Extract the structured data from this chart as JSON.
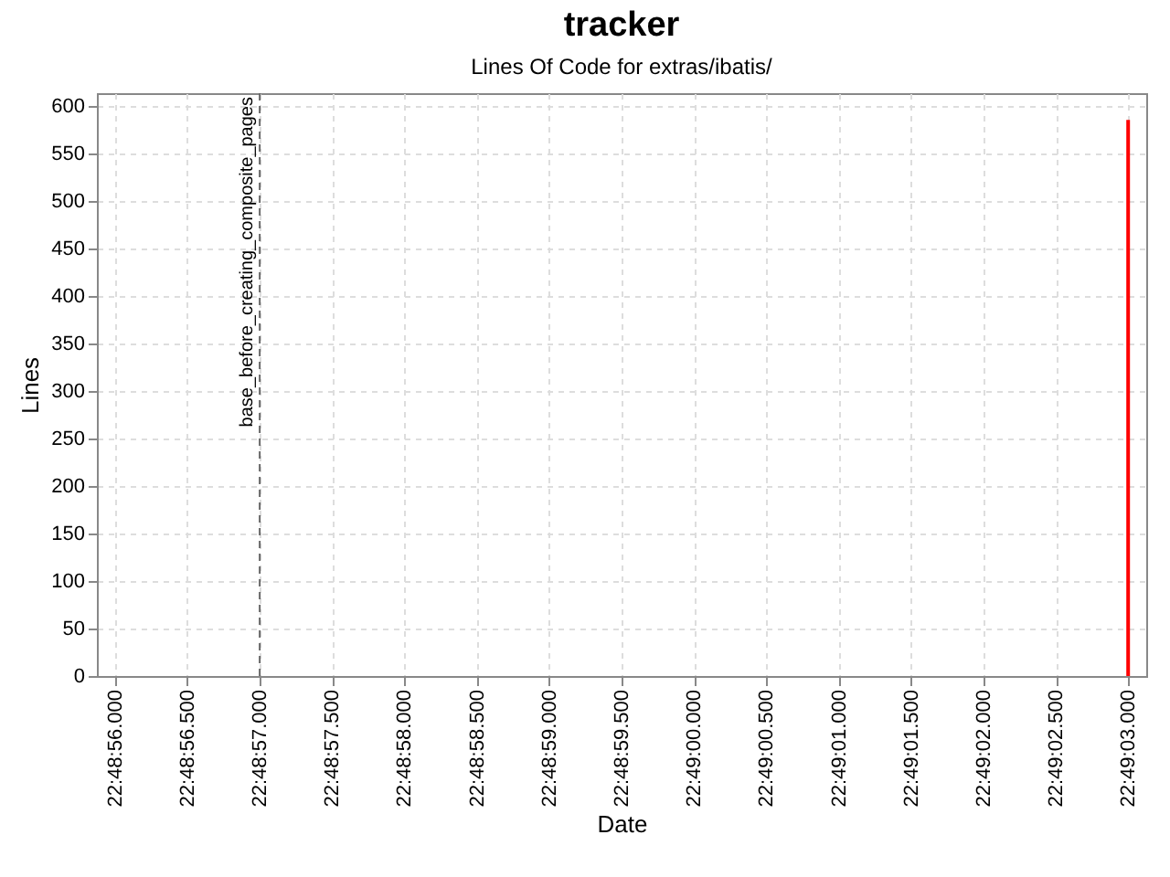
{
  "chart_data": {
    "type": "bar",
    "title": "tracker",
    "subtitle": "Lines Of Code for extras/ibatis/",
    "xlabel": "Date",
    "ylabel": "Lines",
    "categories": [
      "22:48:56.000",
      "22:48:56.500",
      "22:48:57.000",
      "22:48:57.500",
      "22:48:58.000",
      "22:48:58.500",
      "22:48:59.000",
      "22:48:59.500",
      "22:49:00.000",
      "22:49:00.500",
      "22:49:01.000",
      "22:49:01.500",
      "22:49:02.000",
      "22:49:02.500",
      "22:49:03.000"
    ],
    "series": [
      {
        "color": "#ff0000",
        "values": [
          null,
          null,
          null,
          null,
          null,
          null,
          null,
          null,
          null,
          null,
          null,
          null,
          null,
          null,
          585
        ]
      }
    ],
    "ylim": [
      0,
      613
    ],
    "yticks": [
      0,
      50,
      100,
      150,
      200,
      250,
      300,
      350,
      400,
      450,
      500,
      550,
      600
    ],
    "ref_lines": [
      {
        "axis": "x",
        "value": "22:48:57.000",
        "label": "base_before_creating_composite_pages",
        "color": "#666666",
        "line_style": "dashed"
      }
    ],
    "grid": true,
    "legend": false
  }
}
